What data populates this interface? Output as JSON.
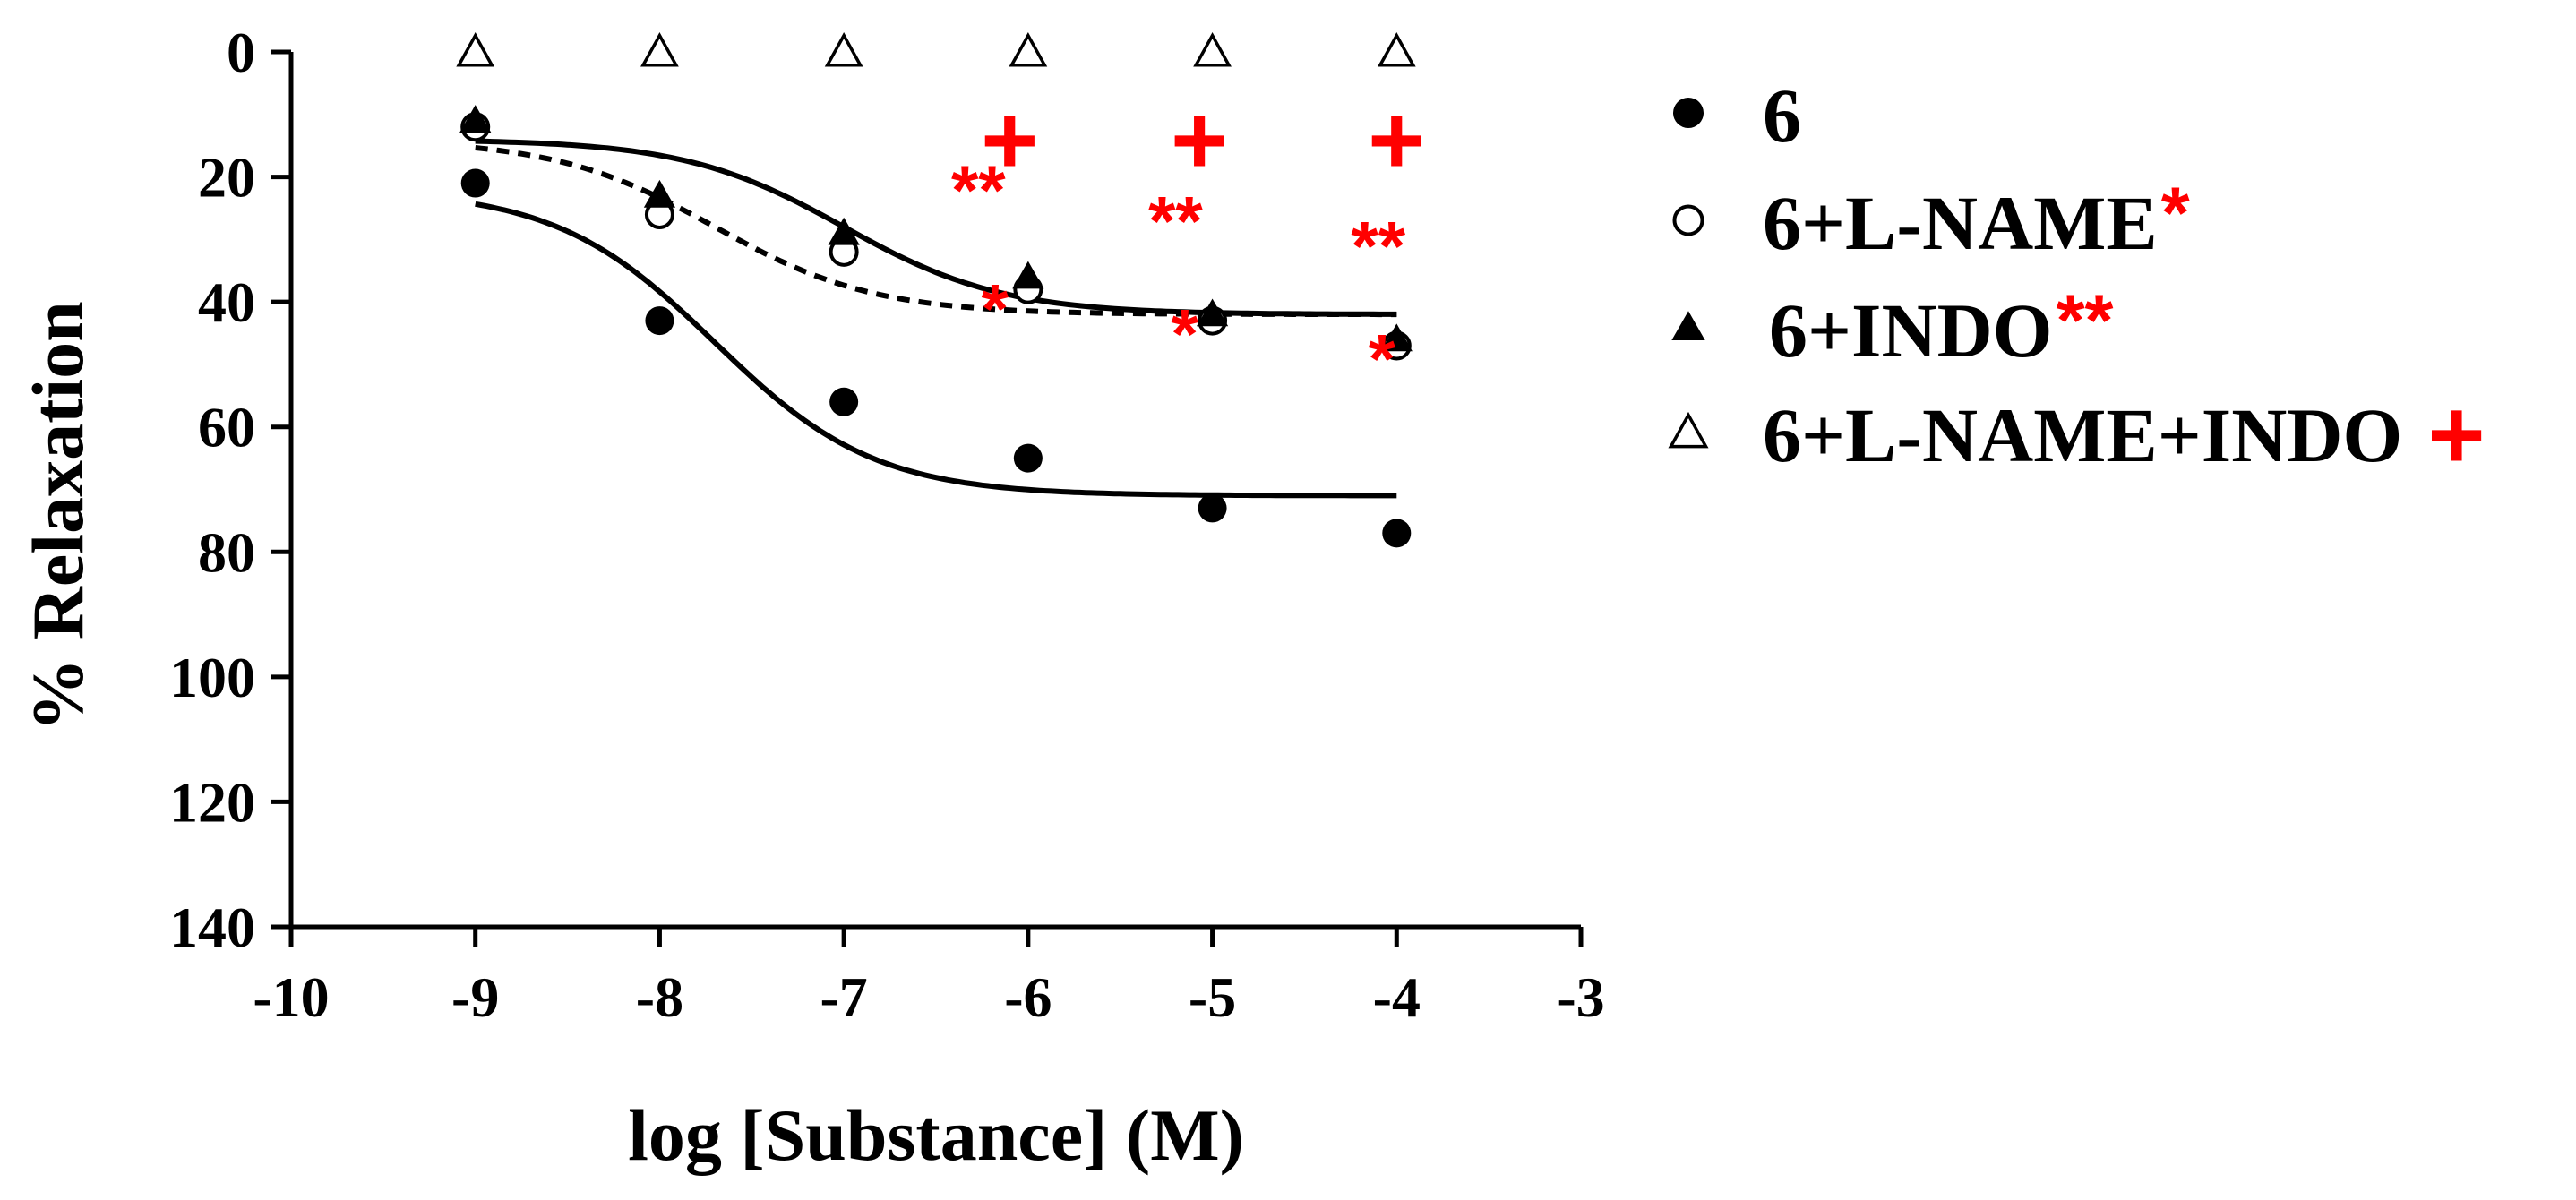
{
  "chart_data": {
    "type": "scatter",
    "title": "",
    "xlabel": "log [Substance] (M)",
    "ylabel": "% Relaxation",
    "xlim": [
      -10,
      -3
    ],
    "ylim": [
      0,
      140
    ],
    "y_inverted": true,
    "x_ticks": [
      -10,
      -9,
      -8,
      -7,
      -6,
      -5,
      -4,
      -3
    ],
    "x_tick_labels": [
      "-10",
      "-9",
      "-8",
      "-7",
      "-6",
      "-5",
      "-4",
      "-3"
    ],
    "y_ticks": [
      0,
      20,
      40,
      60,
      80,
      100,
      120,
      140
    ],
    "y_tick_labels": [
      "0",
      "20",
      "40",
      "60",
      "80",
      "100",
      "120",
      "140"
    ],
    "grid": false,
    "legend_position": "right",
    "x": [
      -9,
      -8,
      -7,
      -6,
      -5,
      -4
    ],
    "series": [
      {
        "name": "6",
        "label": "6",
        "marker": "filled-circle",
        "values": [
          21,
          43,
          56,
          65,
          73,
          77
        ]
      },
      {
        "name": "6+L-NAME",
        "label": "6+L-NAME",
        "sig": "*",
        "marker": "open-circle",
        "values": [
          12,
          26,
          32,
          38,
          43,
          47
        ]
      },
      {
        "name": "6+INDO",
        "label": "6+INDO",
        "sig": "**",
        "marker": "filled-triangle",
        "values": [
          11,
          23,
          29,
          36,
          42,
          46
        ]
      },
      {
        "name": "6+L-NAME+INDO",
        "label": "6+L-NAME+INDO",
        "sig": "+",
        "marker": "open-triangle",
        "values": [
          0,
          0,
          0,
          0,
          0,
          0
        ]
      }
    ],
    "fit_curves": [
      {
        "series": "6",
        "style": "solid",
        "bottom": 22,
        "top": 71,
        "logEC50": -7.7,
        "hill": 1
      },
      {
        "series": "6+L-NAME",
        "style": "dashed",
        "bottom": 14,
        "top": 42,
        "logEC50": -7.7,
        "hill": 1
      },
      {
        "series": "6+INDO",
        "style": "solid",
        "bottom": 14,
        "top": 42,
        "logEC50": -7.0,
        "hill": 1
      }
    ],
    "annotations": [
      {
        "text": "+",
        "x": -6.1,
        "y": 14,
        "size": "large"
      },
      {
        "text": "+",
        "x": -5.07,
        "y": 14,
        "size": "large"
      },
      {
        "text": "+",
        "x": -4.0,
        "y": 14,
        "size": "large"
      },
      {
        "text": "**",
        "x": -6.27,
        "y": 22,
        "size": "medium"
      },
      {
        "text": "**",
        "x": -5.2,
        "y": 27,
        "size": "medium"
      },
      {
        "text": "**",
        "x": -4.1,
        "y": 31,
        "size": "medium"
      },
      {
        "text": "*",
        "x": -6.18,
        "y": 41,
        "size": "medium"
      },
      {
        "text": "*",
        "x": -5.15,
        "y": 45,
        "size": "medium"
      },
      {
        "text": "*",
        "x": -4.08,
        "y": 49,
        "size": "medium"
      }
    ]
  }
}
